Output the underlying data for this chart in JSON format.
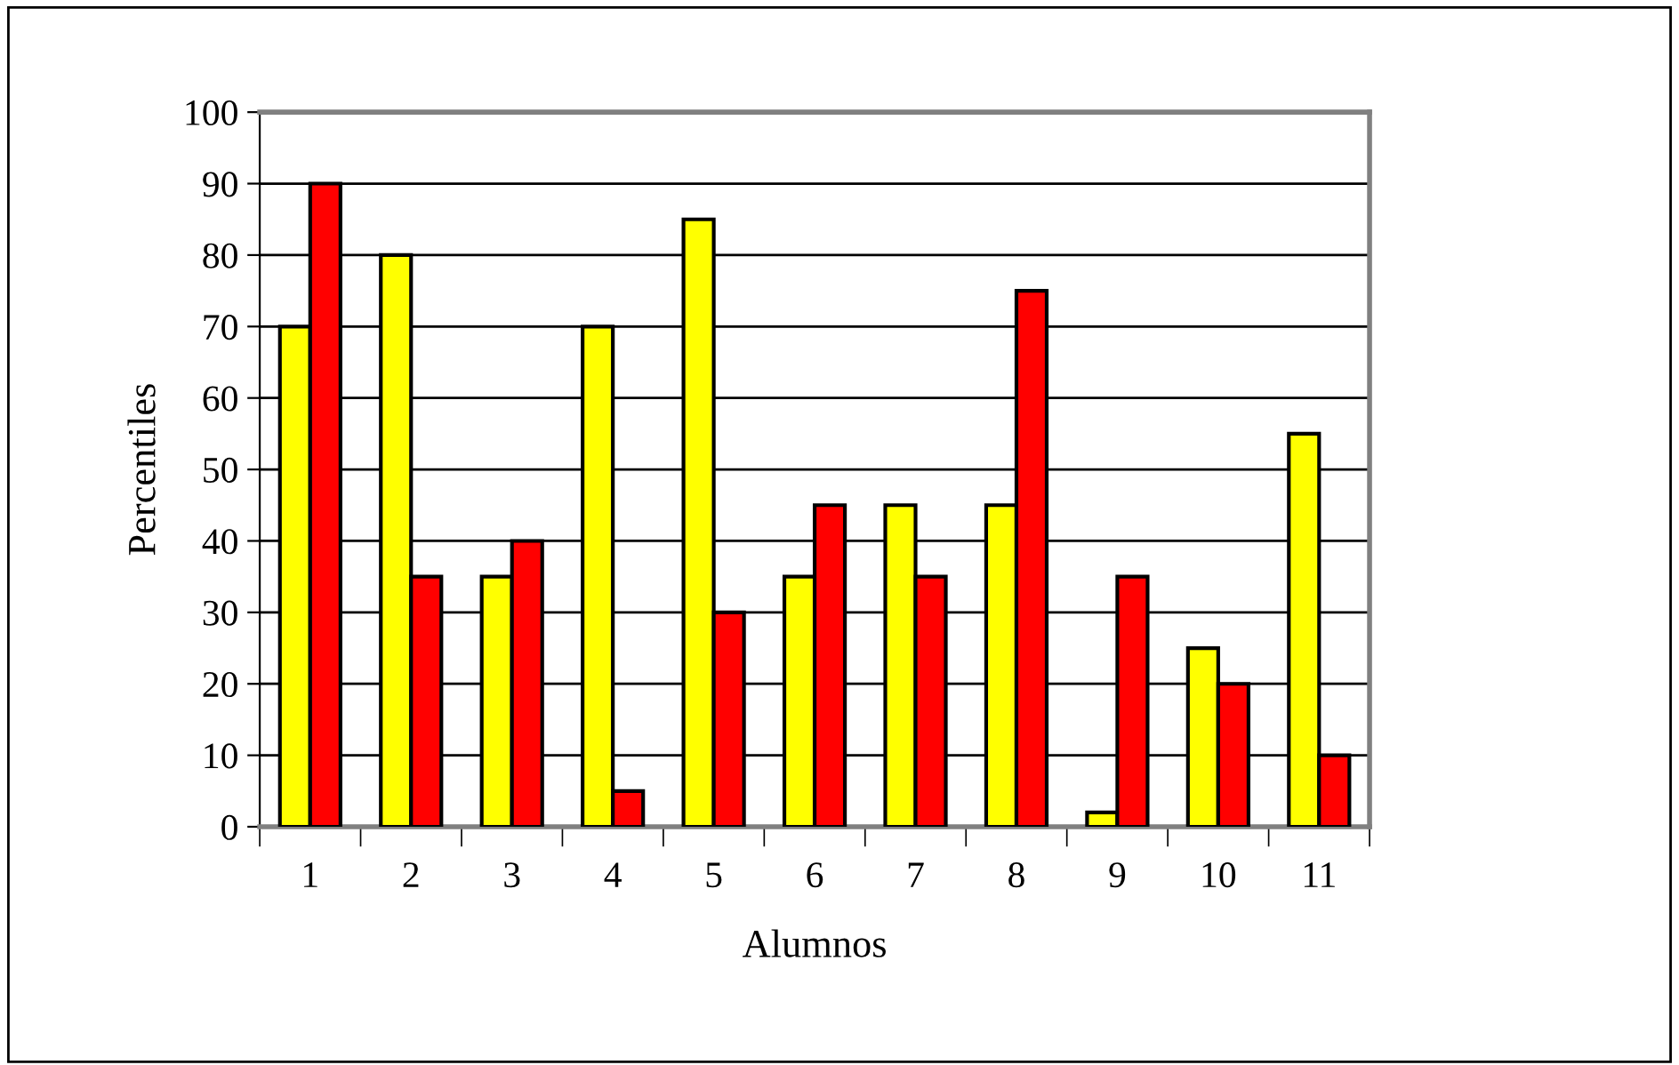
{
  "chart_data": {
    "type": "bar",
    "xlabel": "Alumnos",
    "ylabel": "Percentiles",
    "categories": [
      "1",
      "2",
      "3",
      "4",
      "5",
      "6",
      "7",
      "8",
      "9",
      "10",
      "11"
    ],
    "series": [
      {
        "color": "#ffff00",
        "values": [
          70,
          80,
          35,
          70,
          85,
          35,
          45,
          45,
          2,
          25,
          55
        ]
      },
      {
        "color": "#ff0000",
        "values": [
          90,
          35,
          40,
          5,
          30,
          45,
          35,
          75,
          35,
          20,
          10
        ]
      }
    ],
    "ylim": [
      0,
      100
    ],
    "yticks": [
      0,
      10,
      20,
      30,
      40,
      50,
      60,
      70,
      80,
      90,
      100
    ],
    "grid": "y",
    "legend": false
  }
}
